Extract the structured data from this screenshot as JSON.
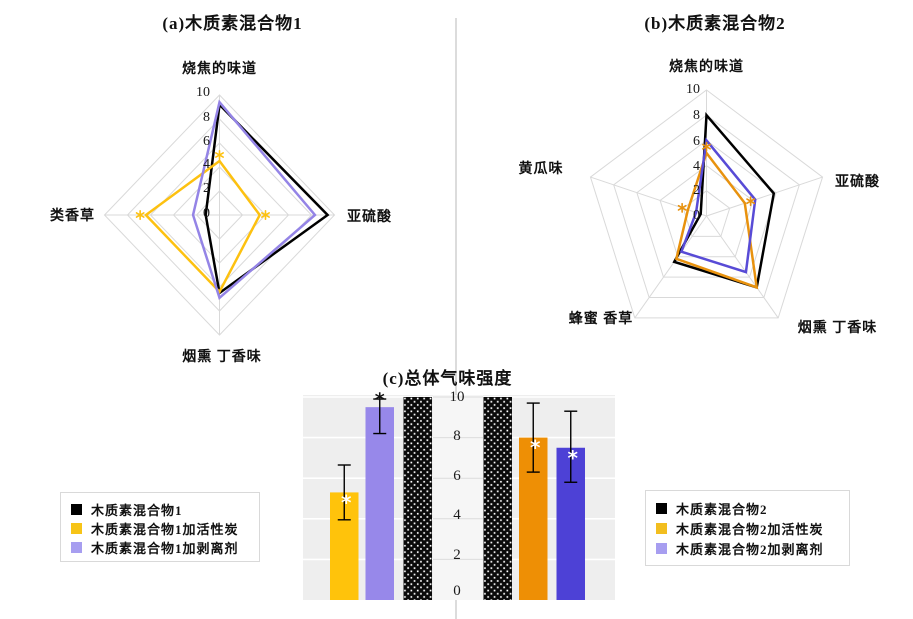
{
  "figure_background": "#ffffff",
  "grid_color": "#d9d9d9",
  "divider_color": "#dcdcdc",
  "sig_symbol": "*",
  "chart_data": [
    {
      "type": "radar",
      "panel": "a",
      "title": "(a)木质素混合物1",
      "axes": [
        "烧焦的味道",
        "亚硫酸",
        "烟熏 丁香味",
        "类香草"
      ],
      "ticks": [
        "10",
        "8",
        "6",
        "4",
        "2",
        "0"
      ],
      "range": [
        0,
        10
      ],
      "grid": "on",
      "series": [
        {
          "name": "木质素混合物1",
          "color": "#000000",
          "values": [
            9.2,
            9.4,
            6.5,
            1.2
          ],
          "marked": [
            false,
            false,
            false,
            false
          ]
        },
        {
          "name": "木质素混合物1加活性炭",
          "color": "#FDC110",
          "values": [
            4.5,
            3.5,
            6.4,
            6.4
          ],
          "marked": [
            true,
            true,
            false,
            true
          ]
        },
        {
          "name": "木质素混合物1加剥离剂",
          "color": "#9484E6",
          "values": [
            9.4,
            8.3,
            6.9,
            2.3
          ],
          "marked": [
            false,
            false,
            false,
            false
          ]
        }
      ]
    },
    {
      "type": "radar",
      "panel": "b",
      "title": "(b)木质素混合物2",
      "axes": [
        "烧焦的味道",
        "亚硫酸",
        "烟熏 丁香味",
        "蜂蜜 香草",
        "黄瓜味"
      ],
      "ticks": [
        "10",
        "8",
        "6",
        "4",
        "2",
        "0"
      ],
      "range": [
        0,
        10
      ],
      "grid": "on",
      "series": [
        {
          "name": "木质素混合物2",
          "color": "#000000",
          "values": [
            8,
            5.8,
            7,
            4.5,
            0.5
          ],
          "marked": [
            false,
            false,
            false,
            false,
            false
          ]
        },
        {
          "name": "木质素混合物2加活性炭",
          "color": "#E8920E",
          "values": [
            5,
            3.3,
            7,
            4.2,
            1.6
          ],
          "marked": [
            true,
            true,
            false,
            false,
            true
          ]
        },
        {
          "name": "木质素混合物2加剥离剂",
          "color": "#584BD6",
          "values": [
            6,
            4.2,
            5.5,
            3.5,
            0.9
          ],
          "marked": [
            false,
            false,
            false,
            false,
            false
          ]
        }
      ]
    },
    {
      "type": "bar",
      "panel": "c",
      "title": "(c)总体气味强度",
      "ticks": [
        "10",
        "8",
        "6",
        "4",
        "2",
        "0"
      ],
      "ylim": [
        0,
        10
      ],
      "bars": [
        {
          "name": "木质素混合物1加活性炭",
          "value": 5.3,
          "err_low": 3.95,
          "err_high": 6.65,
          "color": "#FFC30B",
          "sig": "white"
        },
        {
          "name": "木质素混合物1加剥离剂",
          "value": 9.5,
          "err_low": 8.2,
          "err_high": 9.9,
          "color": "#9788EA",
          "sig": "black-above"
        },
        {
          "name": "木质素混合物1",
          "value": 10,
          "pattern": "black-white-dots"
        },
        {
          "name": "木质素混合物2",
          "value": 10,
          "pattern": "black-white-dots"
        },
        {
          "name": "木质素混合物2加活性炭",
          "value": 8.0,
          "err_low": 6.3,
          "err_high": 9.7,
          "color": "#EE8F05",
          "sig": "white"
        },
        {
          "name": "木质素混合物2加剥离剂",
          "value": 7.5,
          "err_low": 5.8,
          "err_high": 9.3,
          "color": "#4D41D6",
          "sig": "white"
        }
      ]
    }
  ],
  "legends": {
    "left": {
      "items": [
        {
          "label": "木质素混合物1",
          "color": "#000000"
        },
        {
          "label": "木质素混合物1加活性炭",
          "color": "#F7C417"
        },
        {
          "label": "木质素混合物1加剥离剂",
          "color": "#A79EF0"
        }
      ]
    },
    "right": {
      "items": [
        {
          "label": "木质素混合物2",
          "color": "#000000"
        },
        {
          "label": "木质素混合物2加活性炭",
          "color": "#F2BE1F"
        },
        {
          "label": "木质素混合物2加剥离剂",
          "color": "#A79EF0"
        }
      ]
    }
  }
}
